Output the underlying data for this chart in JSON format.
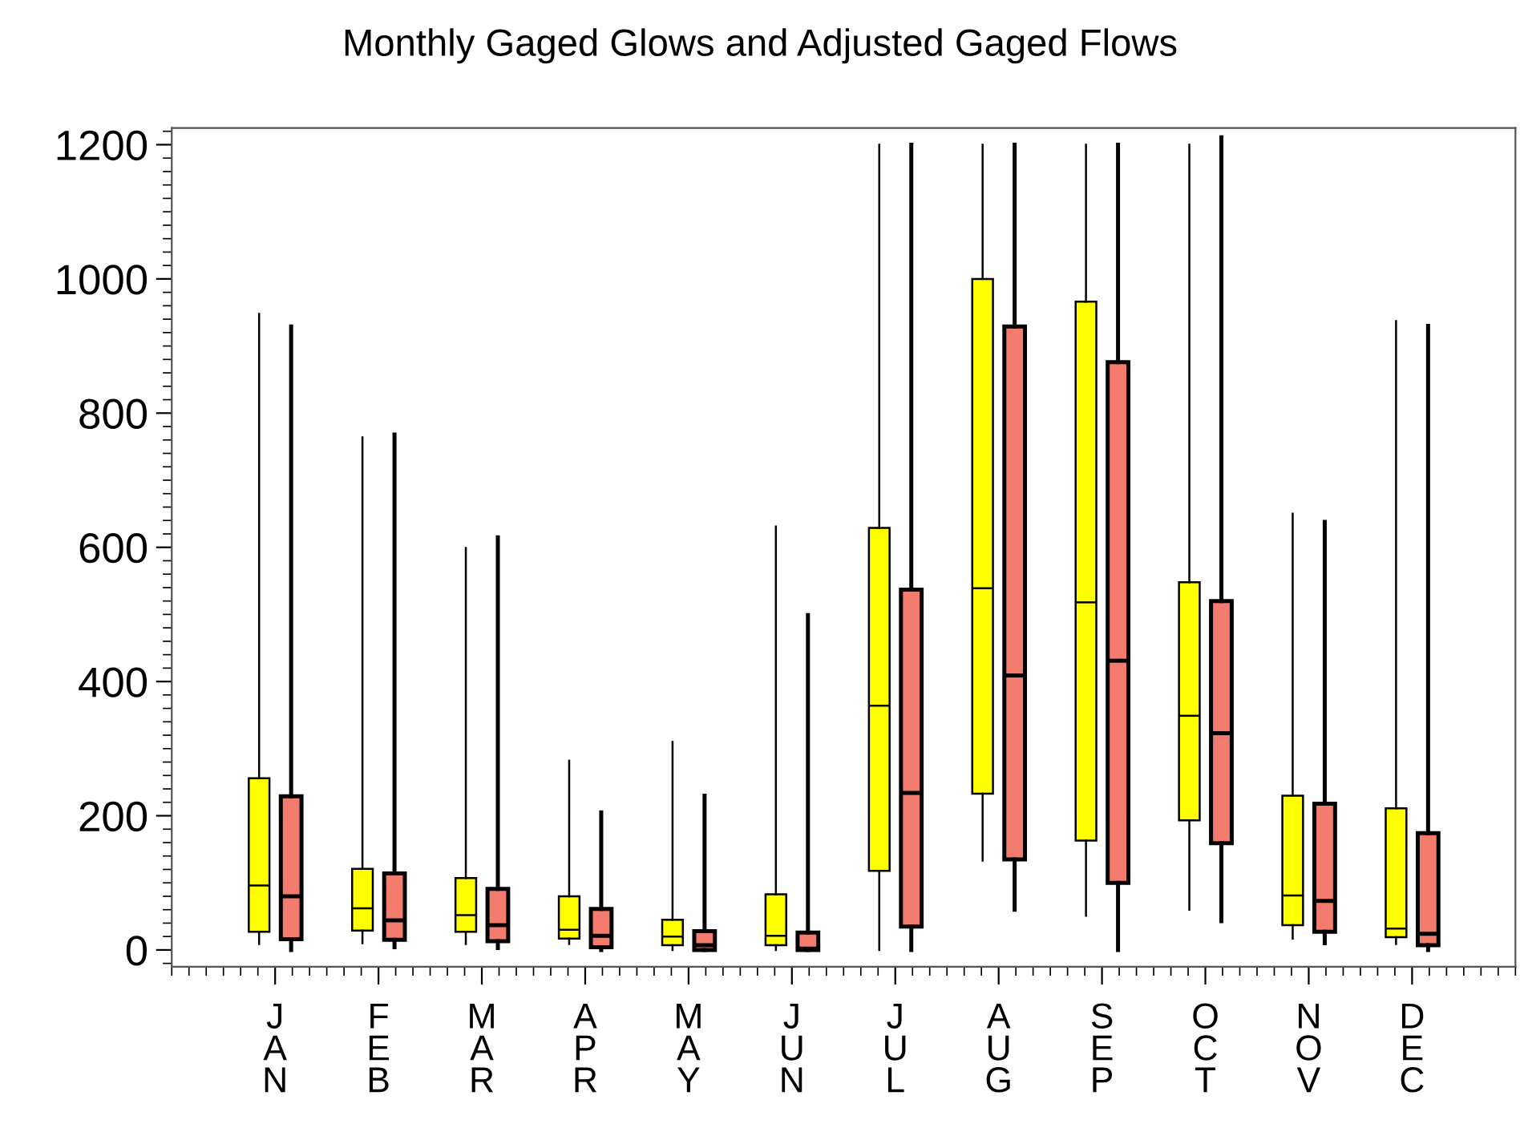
{
  "chart_data": {
    "type": "box",
    "title": "Monthly Gaged Glows and Adjusted Gaged Flows",
    "categories": [
      "J\nA\nN",
      "F\nE\nB",
      "M\nA\nR",
      "A\nP\nR",
      "M\nA\nY",
      "J\nU\nN",
      "J\nU\nL",
      "A\nU\nG",
      "S\nE\nP",
      "O\nC\nT",
      "N\nO\nV",
      "D\nE\nC"
    ],
    "ylim": [
      -25,
      1225
    ],
    "yticks": [
      0,
      200,
      400,
      600,
      800,
      1000,
      1200
    ],
    "grid": false,
    "series": [
      {
        "color": "#ffff00",
        "boxes": [
          {
            "low": 9,
            "q1": 27,
            "median": 96,
            "q3": 256,
            "high": 948
          },
          {
            "low": 10,
            "q1": 29,
            "median": 62,
            "q3": 121,
            "high": 764
          },
          {
            "low": 9,
            "q1": 27,
            "median": 52,
            "q3": 107,
            "high": 599
          },
          {
            "low": 9,
            "q1": 17,
            "median": 30,
            "q3": 80,
            "high": 282
          },
          {
            "low": 0,
            "q1": 7,
            "median": 20,
            "q3": 45,
            "high": 310
          },
          {
            "low": 0,
            "q1": 7,
            "median": 21,
            "q3": 83,
            "high": 631
          },
          {
            "low": 0,
            "q1": 118,
            "median": 364,
            "q3": 629,
            "high": 1200
          },
          {
            "low": 133,
            "q1": 233,
            "median": 539,
            "q3": 1000,
            "high": 1200
          },
          {
            "low": 51,
            "q1": 163,
            "median": 518,
            "q3": 966,
            "high": 1200
          },
          {
            "low": 60,
            "q1": 193,
            "median": 349,
            "q3": 548,
            "high": 1200
          },
          {
            "low": 17,
            "q1": 37,
            "median": 81,
            "q3": 230,
            "high": 650
          },
          {
            "low": 9,
            "q1": 19,
            "median": 32,
            "q3": 211,
            "high": 937
          }
        ]
      },
      {
        "color": "#f47c6e",
        "boxes": [
          {
            "low": 0,
            "q1": 16,
            "median": 80,
            "q3": 229,
            "high": 929
          },
          {
            "low": 4,
            "q1": 15,
            "median": 44,
            "q3": 114,
            "high": 768
          },
          {
            "low": 3,
            "q1": 13,
            "median": 37,
            "q3": 91,
            "high": 615
          },
          {
            "low": 0,
            "q1": 4,
            "median": 21,
            "q3": 61,
            "high": 205
          },
          {
            "low": 0,
            "q1": 0,
            "median": 7,
            "q3": 28,
            "high": 230
          },
          {
            "low": 0,
            "q1": 0,
            "median": 2,
            "q3": 26,
            "high": 499
          },
          {
            "low": 0,
            "q1": 35,
            "median": 234,
            "q3": 537,
            "high": 1200
          },
          {
            "low": 60,
            "q1": 135,
            "median": 409,
            "q3": 929,
            "high": 1200
          },
          {
            "low": 0,
            "q1": 100,
            "median": 431,
            "q3": 876,
            "high": 1200
          },
          {
            "low": 43,
            "q1": 159,
            "median": 323,
            "q3": 520,
            "high": 1211
          },
          {
            "low": 10,
            "q1": 27,
            "median": 73,
            "q3": 218,
            "high": 638
          },
          {
            "low": 0,
            "q1": 7,
            "median": 24,
            "q3": 174,
            "high": 930
          }
        ]
      }
    ]
  }
}
